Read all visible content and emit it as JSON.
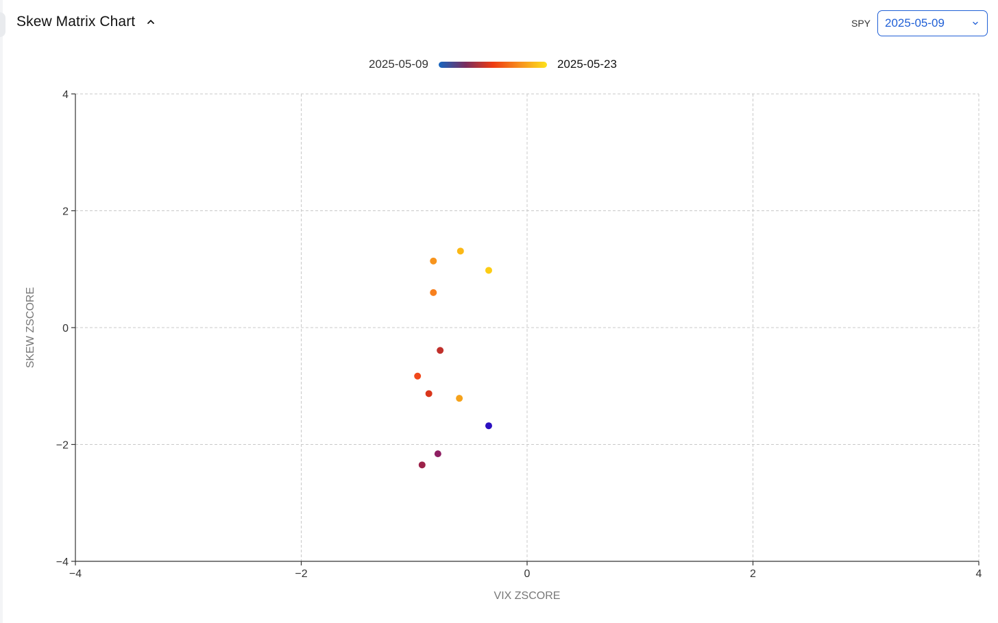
{
  "header": {
    "title": "Skew Matrix Chart",
    "ticker": "SPY",
    "selected_date": "2025-05-09"
  },
  "legend": {
    "start_label": "2025-05-09",
    "end_label": "2025-05-23",
    "gradient_colors": [
      "#1565c0",
      "#7a2d5e",
      "#ee3b12",
      "#f7901e",
      "#fde21b"
    ]
  },
  "chart_data": {
    "type": "scatter",
    "title": "",
    "xlabel": "VIX ZSCORE",
    "ylabel": "SKEW ZSCORE",
    "xlim": [
      -4,
      4
    ],
    "ylim": [
      -4,
      4
    ],
    "xticks": [
      -4,
      -2,
      0,
      2,
      4
    ],
    "yticks": [
      -4,
      -2,
      0,
      2,
      4
    ],
    "xtick_labels": [
      "−4",
      "−2",
      "0",
      "2",
      "4"
    ],
    "ytick_labels": [
      "−4",
      "−2",
      "0",
      "2",
      "4"
    ],
    "grid": true,
    "points": [
      {
        "x": -0.34,
        "y": -1.68,
        "color": "#2b0fc0"
      },
      {
        "x": -0.79,
        "y": -2.16,
        "color": "#8e1f62"
      },
      {
        "x": -0.93,
        "y": -2.35,
        "color": "#9c2149"
      },
      {
        "x": -0.77,
        "y": -0.39,
        "color": "#c0302b"
      },
      {
        "x": -0.87,
        "y": -1.13,
        "color": "#d9361b"
      },
      {
        "x": -0.97,
        "y": -0.83,
        "color": "#f0481b"
      },
      {
        "x": -0.83,
        "y": 0.6,
        "color": "#f7801e"
      },
      {
        "x": -0.83,
        "y": 1.14,
        "color": "#f7941d"
      },
      {
        "x": -0.6,
        "y": -1.21,
        "color": "#f5a21b"
      },
      {
        "x": -0.59,
        "y": 1.31,
        "color": "#fbb816"
      },
      {
        "x": -0.34,
        "y": 0.98,
        "color": "#fccc14"
      }
    ]
  }
}
